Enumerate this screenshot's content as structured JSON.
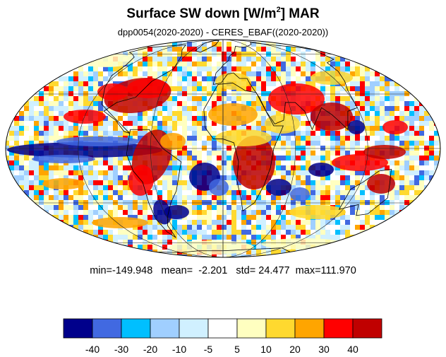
{
  "title": {
    "main": "Surface SW down [W/m",
    "superscript": "2",
    "suffix": "]  MAR"
  },
  "subtitle": "dpp0054(2020-2020) - CERES_EBAF((2020-2020))",
  "stats": {
    "min_label": "min=",
    "min": "-149.948",
    "mean_label": "mean=",
    "mean": "-2.201",
    "std_label": "std=",
    "std": "24.477",
    "max_label": "max=",
    "max": "111.970"
  },
  "colorbar": {
    "colors": [
      "#00008b",
      "#4169e1",
      "#00bfff",
      "#a0cfff",
      "#d0f0ff",
      "#ffffff",
      "#ffffc0",
      "#ffd92f",
      "#ffa500",
      "#ff0000",
      "#c00000"
    ],
    "labels": [
      "-40",
      "-30",
      "-20",
      "-10",
      "-5",
      "5",
      "10",
      "20",
      "30",
      "40"
    ]
  },
  "map": {
    "projection": "mollweide",
    "field": "difference"
  }
}
